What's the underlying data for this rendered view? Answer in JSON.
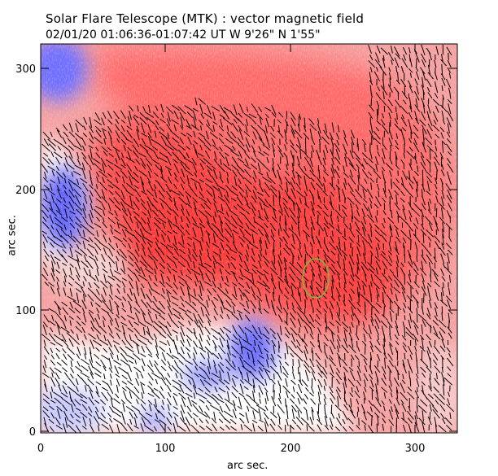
{
  "header": {
    "title": "Solar Flare Telescope (MTK) : vector magnetic field",
    "subtitle": "02/01/20  01:06:36-01:07:42 UT    W 9'26\"  N 1'55\""
  },
  "axes": {
    "x_label": "arc sec.",
    "y_label": "arc sec.",
    "x_ticks": [
      "0",
      "100",
      "200",
      "300"
    ],
    "y_ticks": [
      "0",
      "100",
      "200",
      "300"
    ],
    "x_range": [
      0,
      335
    ],
    "y_range": [
      0,
      315
    ]
  },
  "colors": {
    "positive_field": "#ff4b4b",
    "negative_field": "#5050ff",
    "neutral_field": "#ffffff",
    "vectors": "#000000",
    "marker": "#7dbb3a"
  },
  "marker": {
    "shape": "ellipse",
    "color_name": "green"
  }
}
